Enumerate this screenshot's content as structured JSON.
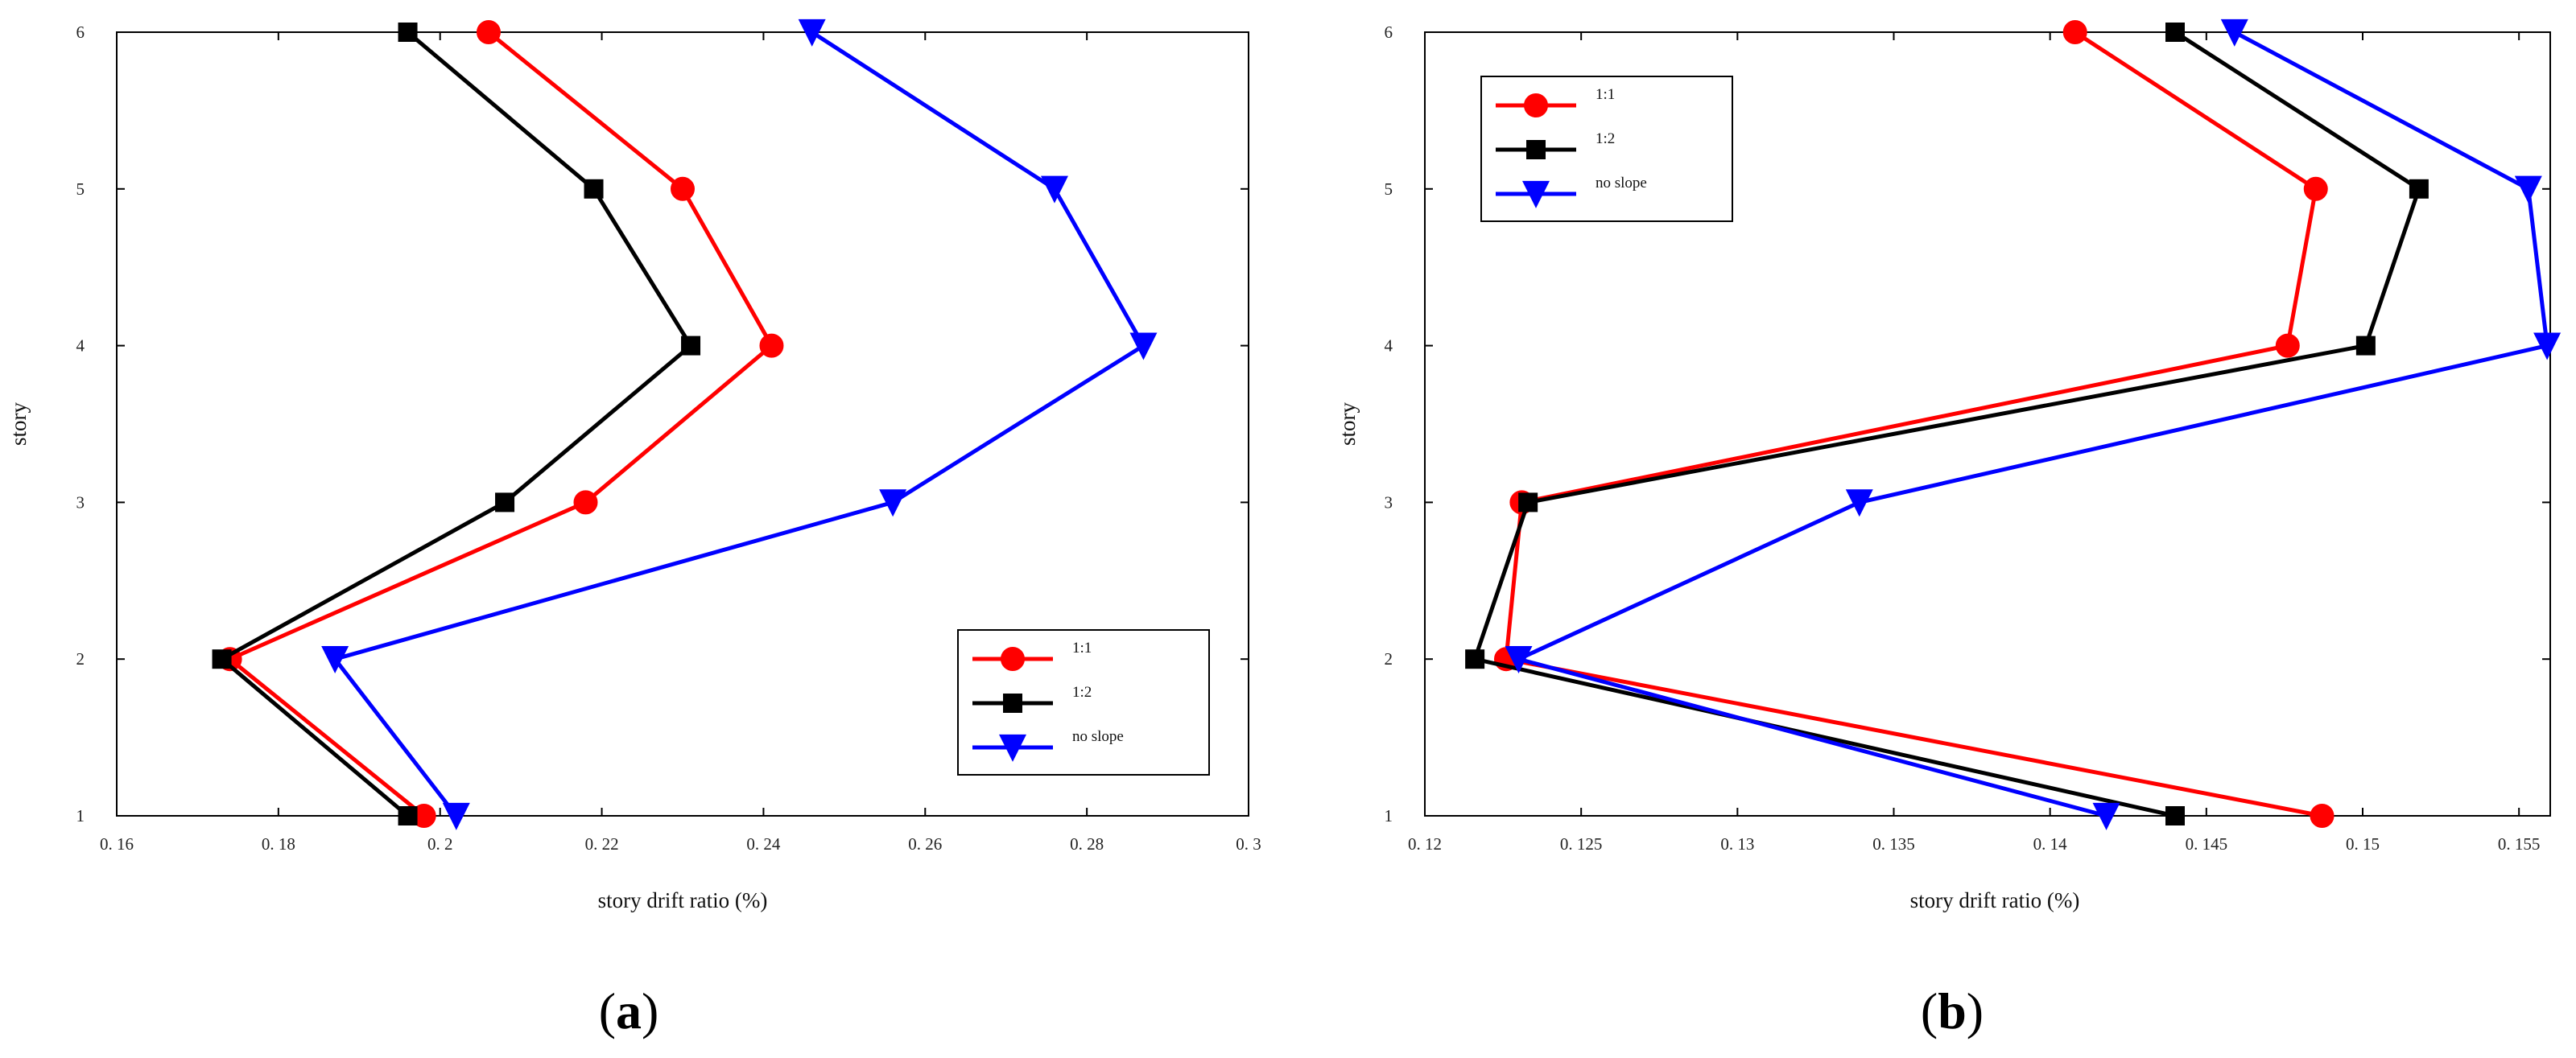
{
  "chart_data": [
    {
      "type": "line",
      "panel_label": "(a)",
      "panel_letter": "a",
      "xlabel": "story drift ratio (%)",
      "ylabel": "story",
      "xlim": [
        0.16,
        0.3
      ],
      "ylim": [
        1,
        6
      ],
      "xticks": [
        0.16,
        0.18,
        0.2,
        0.22,
        0.24,
        0.26,
        0.28,
        0.3
      ],
      "xtick_labels": [
        "0. 16",
        "0. 18",
        "0. 2",
        "0. 22",
        "0. 24",
        "0. 26",
        "0. 28",
        "0. 3"
      ],
      "yticks": [
        1,
        2,
        3,
        4,
        5,
        6
      ],
      "ytick_labels": [
        "1",
        "2",
        "3",
        "4",
        "5",
        "6"
      ],
      "legend_position": "bottom-right",
      "grid": false,
      "series": [
        {
          "name": "1:1",
          "color": "#ff0000",
          "marker": "circle",
          "x": [
            0.198,
            0.174,
            0.218,
            0.241,
            0.23,
            0.206
          ],
          "y": [
            1,
            2,
            3,
            4,
            5,
            6
          ]
        },
        {
          "name": "1:2",
          "color": "#000000",
          "marker": "square",
          "x": [
            0.196,
            0.173,
            0.208,
            0.231,
            0.219,
            0.196
          ],
          "y": [
            1,
            2,
            3,
            4,
            5,
            6
          ]
        },
        {
          "name": "no slope",
          "color": "#0000ff",
          "marker": "triangle-down",
          "x": [
            0.202,
            0.187,
            0.256,
            0.287,
            0.276,
            0.246
          ],
          "y": [
            1,
            2,
            3,
            4,
            5,
            6
          ]
        }
      ]
    },
    {
      "type": "line",
      "panel_label": "(b)",
      "panel_letter": "b",
      "xlabel": "story drift ratio (%)",
      "ylabel": "story",
      "xlim": [
        0.12,
        0.156
      ],
      "ylim": [
        1,
        6
      ],
      "xticks": [
        0.12,
        0.125,
        0.13,
        0.135,
        0.14,
        0.145,
        0.15,
        0.155
      ],
      "xtick_labels": [
        "0. 12",
        "0. 125",
        "0. 13",
        "0. 135",
        "0. 14",
        "0. 145",
        "0. 15",
        "0. 155"
      ],
      "yticks": [
        1,
        2,
        3,
        4,
        5,
        6
      ],
      "ytick_labels": [
        "1",
        "2",
        "3",
        "4",
        "5",
        "6"
      ],
      "legend_position": "top-left",
      "grid": false,
      "series": [
        {
          "name": "1:1",
          "color": "#ff0000",
          "marker": "circle",
          "x": [
            0.1487,
            0.1226,
            0.1231,
            0.1476,
            0.1485,
            0.1408
          ],
          "y": [
            1,
            2,
            3,
            4,
            5,
            6
          ]
        },
        {
          "name": "1:2",
          "color": "#000000",
          "marker": "square",
          "x": [
            0.144,
            0.1216,
            0.1233,
            0.1501,
            0.1518,
            0.144
          ],
          "y": [
            1,
            2,
            3,
            4,
            5,
            6
          ]
        },
        {
          "name": "no slope",
          "color": "#0000ff",
          "marker": "triangle-down",
          "x": [
            0.1418,
            0.123,
            0.1339,
            0.1559,
            0.1553,
            0.1459
          ],
          "y": [
            1,
            2,
            3,
            4,
            5,
            6
          ]
        }
      ]
    }
  ]
}
